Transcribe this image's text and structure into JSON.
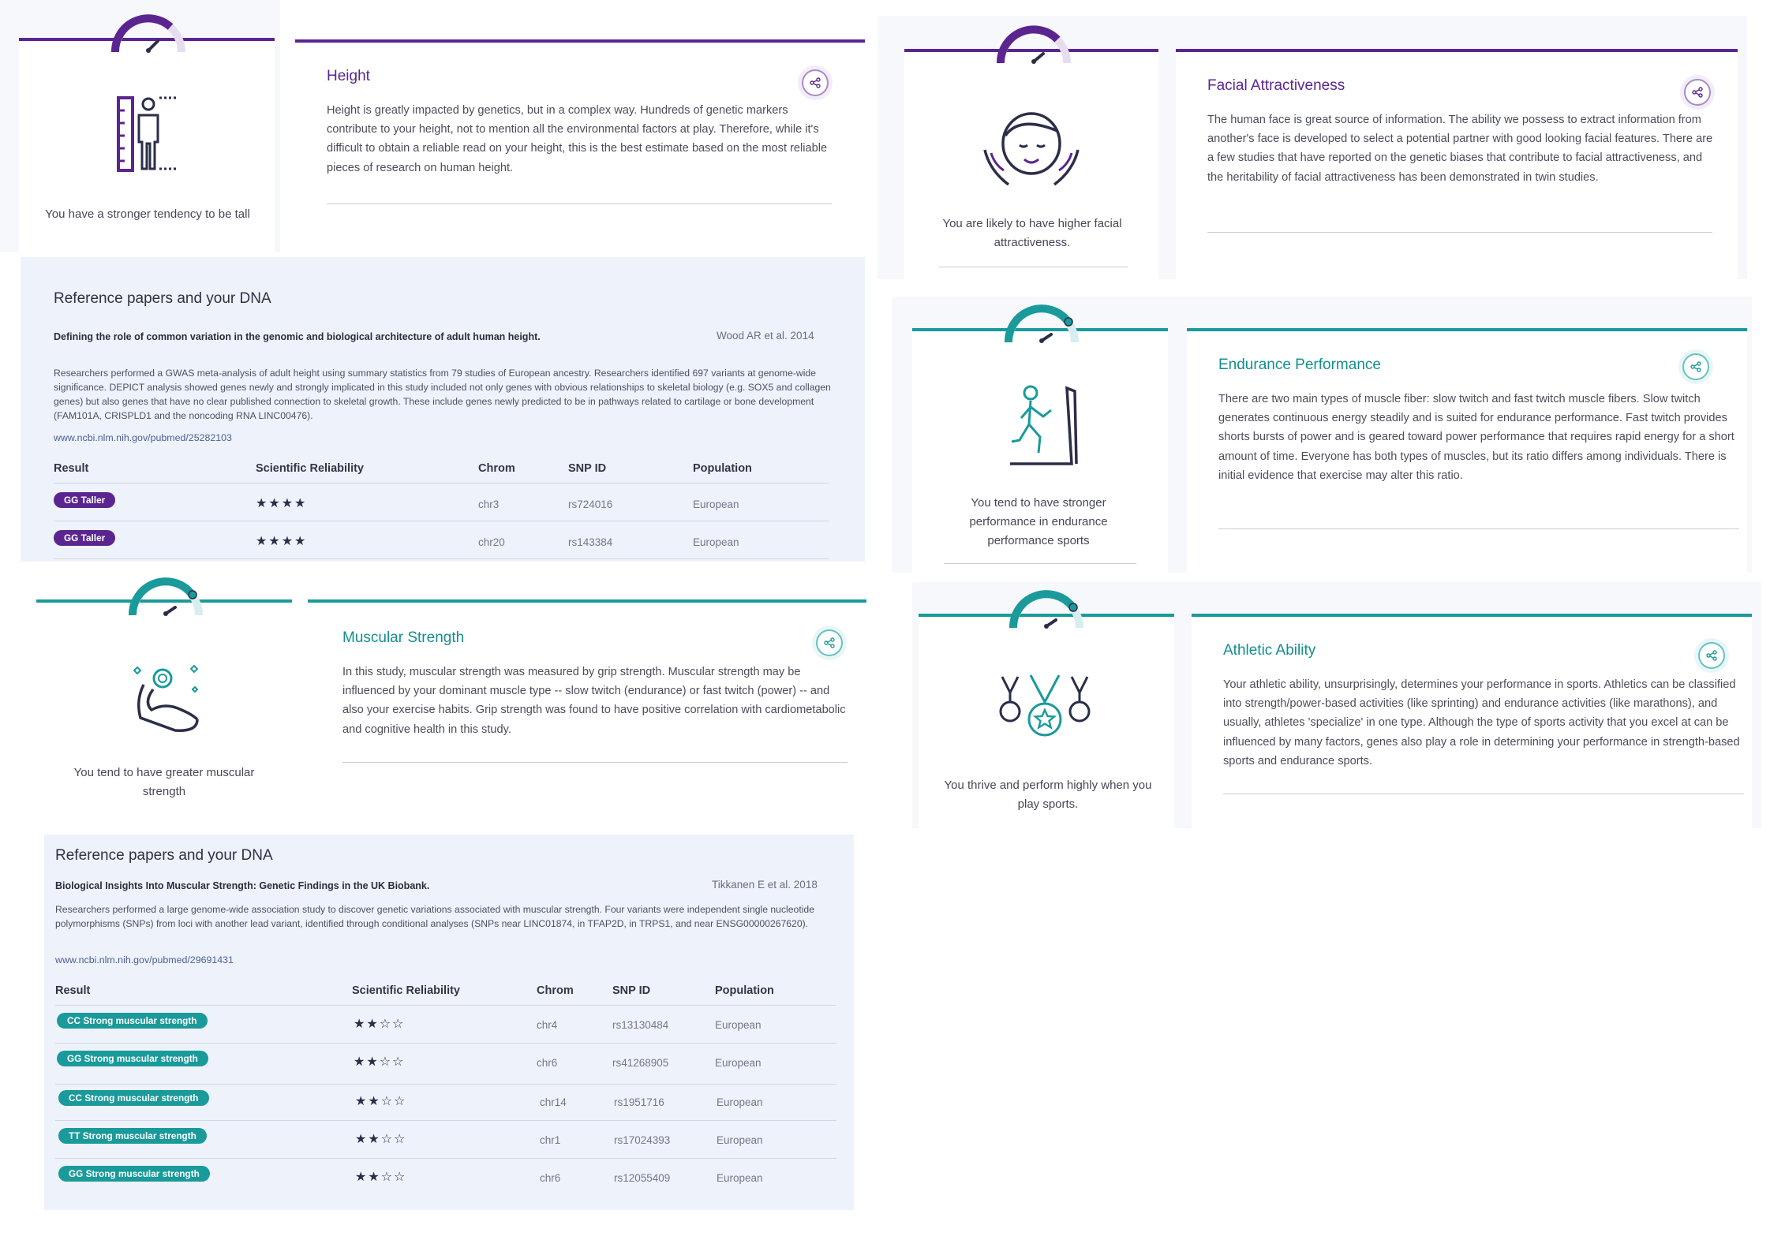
{
  "traits": {
    "height": {
      "title": "Height",
      "summary": "You have a stronger tendency to be tall",
      "description": "Height is greatly impacted by genetics, but in a complex way. Hundreds of genetic markers contribute to your height, not to mention all the environmental factors at play. Therefore, while it's difficult to obtain a reliable read on your height, this is the best estimate based on the most reliable pieces of research on human height.",
      "icon": "height-ruler-person-icon",
      "accent": "#5b2590"
    },
    "facial": {
      "title": "Facial Attractiveness",
      "summary": "You are likely to have higher facial attractiveness.",
      "description": "The human face is great source of information. The ability we possess to extract information from another's face is developed to select a potential partner with good looking facial features. There are a few studies that have reported on the genetic biases that contribute to facial attractiveness, and the heritability of facial attractiveness has been demonstrated in twin studies.",
      "icon": "face-hands-icon",
      "accent": "#5b2590"
    },
    "endurance": {
      "title": "Endurance Performance",
      "summary": "You tend to have stronger performance in endurance performance sports",
      "description": "There are two main types of muscle fiber: slow twitch and fast twitch muscle fibers. Slow twitch generates continuous energy steadily and is suited for endurance performance. Fast twitch provides shorts bursts of power and is geared toward power performance that requires rapid energy for a short amount of time. Everyone has both types of muscles, but its ratio differs among individuals. There is initial evidence that exercise may alter this ratio.",
      "icon": "treadmill-runner-icon",
      "accent": "#1a9a9a"
    },
    "muscular": {
      "title": "Muscular Strength",
      "summary": "You tend to have greater muscular strength",
      "description": "In this study, muscular strength was measured by grip strength. Muscular strength may be influenced by your dominant muscle type -- slow twitch (endurance) or fast twitch (power) -- and also your exercise habits. Grip strength was found to have positive correlation with cardiometabolic and cognitive health in this study.",
      "icon": "flexed-arm-icon",
      "accent": "#1a9a9a"
    },
    "athletic": {
      "title": "Athletic Ability",
      "summary": "You thrive and perform highly when you play sports.",
      "description": "Your athletic ability, unsurprisingly, determines your performance in sports. Athletics can be classified into strength/power-based activities (like sprinting) and endurance activities (like marathons), and usually, athletes 'specialize' in one type. Although the type of sports activity that you excel at can be influenced by many factors, genes also play a role in determining your performance in strength-based sports and endurance sports.",
      "icon": "medals-icon",
      "accent": "#1a9a9a"
    }
  },
  "references": {
    "height": {
      "heading": "Reference papers and your DNA",
      "paper_title": "Defining the role of common variation in the genomic and biological architecture of adult human height.",
      "citation": "Wood AR et al. 2014",
      "abstract": "Researchers performed a GWAS meta-analysis of adult height using summary statistics from 79 studies of European ancestry. Researchers identified 697 variants at genome-wide significance. DEPICT analysis showed genes newly and strongly implicated in this study included not only genes with obvious relationships to skeletal biology (e.g. SOX5 and collagen genes) but also genes that have no clear published connection to skeletal growth. These include genes newly predicted to be in pathways related to cartilage or bone development (FAM101A, CRISPLD1 and the noncoding RNA LINC00476).",
      "link": "www.ncbi.nlm.nih.gov/pubmed/25282103",
      "columns": [
        "Result",
        "Scientific Reliability",
        "Chrom",
        "SNP ID",
        "Population"
      ],
      "rows": [
        {
          "result": "GG Taller",
          "stars": "★★★★",
          "chrom": "chr3",
          "snp": "rs724016",
          "population": "European"
        },
        {
          "result": "GG Taller",
          "stars": "★★★★",
          "chrom": "chr20",
          "snp": "rs143384",
          "population": "European"
        }
      ]
    },
    "muscular": {
      "heading": "Reference papers and your DNA",
      "paper_title": "Biological Insights Into Muscular Strength: Genetic Findings in the UK Biobank.",
      "citation": "Tikkanen E et al. 2018",
      "abstract": "Researchers performed a large genome-wide association study to discover genetic variations associated with muscular strength. Four variants were independent single nucleotide polymorphisms (SNPs) from loci with another lead variant, identified through conditional analyses (SNPs near LINC01874, in TFAP2D, in TRPS1, and near ENSG00000267620).",
      "link": "www.ncbi.nlm.nih.gov/pubmed/29691431",
      "columns": [
        "Result",
        "Scientific Reliability",
        "Chrom",
        "SNP ID",
        "Population"
      ],
      "rows": [
        {
          "result": "CC Strong muscular strength",
          "stars": "★★☆☆",
          "chrom": "chr4",
          "snp": "rs13130484",
          "population": "European"
        },
        {
          "result": "GG Strong muscular strength",
          "stars": "★★☆☆",
          "chrom": "chr6",
          "snp": "rs41268905",
          "population": "European"
        },
        {
          "result": "CC Strong muscular strength",
          "stars": "★★☆☆",
          "chrom": "chr14",
          "snp": "rs1951716",
          "population": "European"
        },
        {
          "result": "TT Strong muscular strength",
          "stars": "★★☆☆",
          "chrom": "chr1",
          "snp": "rs17024393",
          "population": "European"
        },
        {
          "result": "GG Strong muscular strength",
          "stars": "★★☆☆",
          "chrom": "chr6",
          "snp": "rs12055409",
          "population": "European"
        }
      ]
    }
  }
}
